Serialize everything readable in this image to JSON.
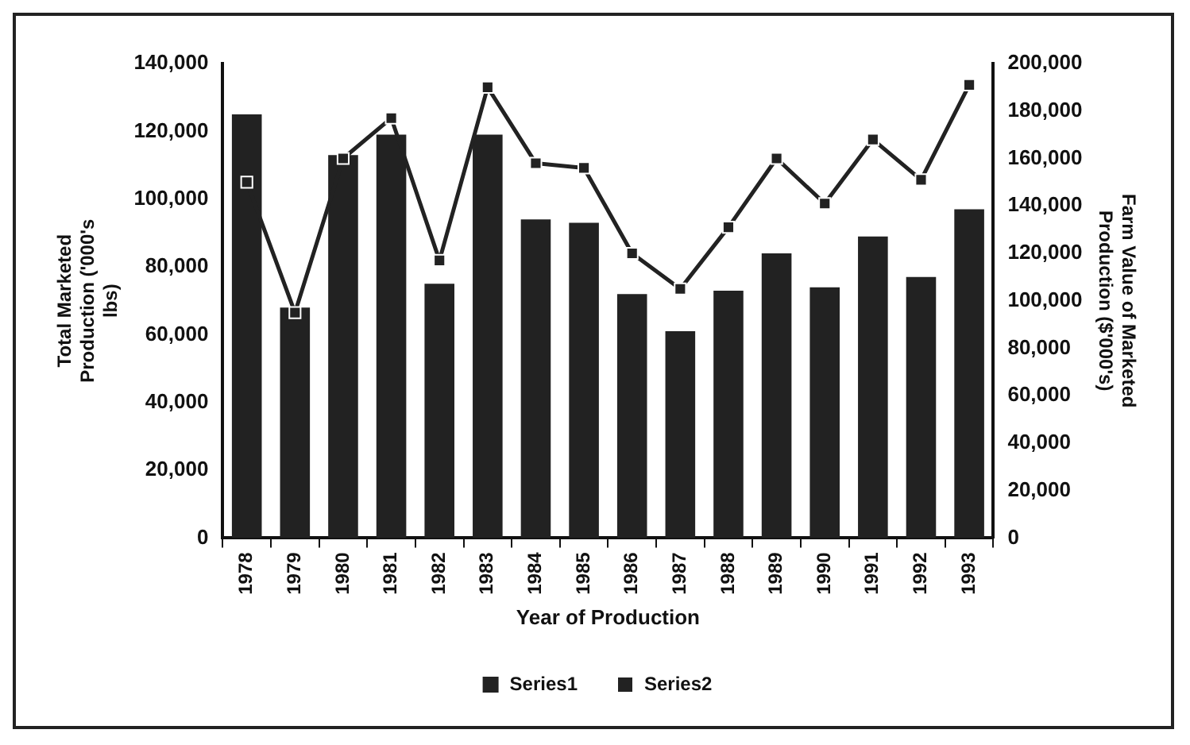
{
  "chart_data": {
    "type": "bar",
    "xlabel": "Year of Production",
    "ylabel": "Total     Marketed Production   ('000's lbs)",
    "y2label": "Farm  Value  of Marketed Production ($'000's)",
    "categories": [
      "1978",
      "1979",
      "1980",
      "1981",
      "1982",
      "1983",
      "1984",
      "1985",
      "1986",
      "1987",
      "1988",
      "1989",
      "1990",
      "1991",
      "1992",
      "1993"
    ],
    "series": [
      {
        "name": "Series1",
        "color": "#222222",
        "values": [
          125000,
          68000,
          113000,
          119000,
          75000,
          119000,
          94000,
          93000,
          72000,
          61000,
          73000,
          84000,
          74000,
          89000,
          77000,
          97000
        ]
      },
      {
        "name": "Series2",
        "type": "line",
        "axis": "y2",
        "color": "#222222",
        "values": [
          150000,
          95000,
          160000,
          177000,
          117000,
          190000,
          158000,
          156000,
          120000,
          105000,
          131000,
          160000,
          141000,
          168000,
          151000,
          191000
        ]
      }
    ],
    "ylim": [
      0,
      140000
    ],
    "yticks": [
      {
        "value": 0,
        "label": "0"
      },
      {
        "value": 20000,
        "label": "20,000"
      },
      {
        "value": 40000,
        "label": "40,000"
      },
      {
        "value": 60000,
        "label": "60,000"
      },
      {
        "value": 80000,
        "label": "80,000"
      },
      {
        "value": 100000,
        "label": "100,000"
      },
      {
        "value": 120000,
        "label": "120,000"
      },
      {
        "value": 140000,
        "label": "140,000"
      }
    ],
    "y2lim": [
      0,
      200000
    ],
    "y2ticks": [
      {
        "value": 0,
        "label": "0"
      },
      {
        "value": 20000,
        "label": "20,000"
      },
      {
        "value": 40000,
        "label": "40,000"
      },
      {
        "value": 60000,
        "label": "60,000"
      },
      {
        "value": 80000,
        "label": "80,000"
      },
      {
        "value": 100000,
        "label": "100,000"
      },
      {
        "value": 120000,
        "label": "120,000"
      },
      {
        "value": 140000,
        "label": "140,000"
      },
      {
        "value": 160000,
        "label": "160,000"
      },
      {
        "value": 180000,
        "label": "180,000"
      },
      {
        "value": 200000,
        "label": "200,000"
      }
    ],
    "grid": false,
    "legend": "bottom",
    "marker": "square",
    "line_style": "solid"
  }
}
